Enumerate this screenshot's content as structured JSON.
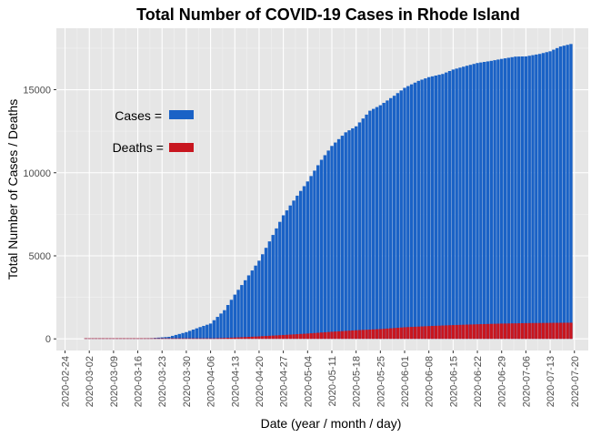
{
  "chart_data": {
    "type": "bar",
    "title": "Total Number of COVID-19 Cases in Rhode Island",
    "xlabel": "Date (year / month / day)",
    "ylabel": "Total Number of Cases / Deaths",
    "x_start": "2020-02-24",
    "x_end": "2020-07-20",
    "x_ticks": [
      "2020-02-24",
      "2020-03-02",
      "2020-03-09",
      "2020-03-16",
      "2020-03-23",
      "2020-03-30",
      "2020-04-06",
      "2020-04-13",
      "2020-04-20",
      "2020-04-27",
      "2020-05-04",
      "2020-05-11",
      "2020-05-18",
      "2020-05-25",
      "2020-06-01",
      "2020-06-08",
      "2020-06-15",
      "2020-06-22",
      "2020-06-29",
      "2020-07-06",
      "2020-07-13",
      "2020-07-20"
    ],
    "y_ticks": [
      0,
      5000,
      10000,
      15000
    ],
    "ylim": [
      -700,
      18700
    ],
    "grid": true,
    "legend_position": "top-left",
    "series": [
      {
        "name": "Cases",
        "color": "#1a62c6",
        "points": [
          [
            "2020-03-01",
            2
          ],
          [
            "2020-03-10",
            5
          ],
          [
            "2020-03-15",
            20
          ],
          [
            "2020-03-20",
            44
          ],
          [
            "2020-03-25",
            124
          ],
          [
            "2020-03-30",
            408
          ],
          [
            "2020-04-03",
            711
          ],
          [
            "2020-04-06",
            922
          ],
          [
            "2020-04-10",
            1727
          ],
          [
            "2020-04-13",
            2665
          ],
          [
            "2020-04-16",
            3529
          ],
          [
            "2020-04-20",
            4706
          ],
          [
            "2020-04-24",
            6256
          ],
          [
            "2020-04-27",
            7439
          ],
          [
            "2020-05-01",
            8621
          ],
          [
            "2020-05-04",
            9477
          ],
          [
            "2020-05-08",
            10779
          ],
          [
            "2020-05-11",
            11614
          ],
          [
            "2020-05-15",
            12434
          ],
          [
            "2020-05-18",
            12795
          ],
          [
            "2020-05-22",
            13735
          ],
          [
            "2020-05-25",
            14065
          ],
          [
            "2020-05-29",
            14635
          ],
          [
            "2020-06-01",
            15112
          ],
          [
            "2020-06-05",
            15530
          ],
          [
            "2020-06-08",
            15756
          ],
          [
            "2020-06-12",
            15947
          ],
          [
            "2020-06-15",
            16213
          ],
          [
            "2020-06-19",
            16442
          ],
          [
            "2020-06-22",
            16606
          ],
          [
            "2020-06-26",
            16737
          ],
          [
            "2020-06-29",
            16853
          ],
          [
            "2020-07-03",
            16991
          ],
          [
            "2020-07-06",
            17005
          ],
          [
            "2020-07-10",
            17154
          ],
          [
            "2020-07-13",
            17312
          ],
          [
            "2020-07-16",
            17600
          ],
          [
            "2020-07-19",
            17750
          ]
        ]
      },
      {
        "name": "Deaths",
        "color": "#c8161f",
        "points": [
          [
            "2020-03-01",
            0
          ],
          [
            "2020-03-25",
            0
          ],
          [
            "2020-03-30",
            8
          ],
          [
            "2020-04-06",
            25
          ],
          [
            "2020-04-13",
            80
          ],
          [
            "2020-04-20",
            150
          ],
          [
            "2020-04-27",
            233
          ],
          [
            "2020-05-04",
            320
          ],
          [
            "2020-05-11",
            430
          ],
          [
            "2020-05-18",
            520
          ],
          [
            "2020-05-25",
            590
          ],
          [
            "2020-06-01",
            700
          ],
          [
            "2020-06-08",
            770
          ],
          [
            "2020-06-15",
            830
          ],
          [
            "2020-06-22",
            880
          ],
          [
            "2020-06-29",
            920
          ],
          [
            "2020-07-06",
            950
          ],
          [
            "2020-07-13",
            965
          ],
          [
            "2020-07-19",
            975
          ]
        ]
      }
    ],
    "legend": [
      {
        "label": "Cases =",
        "color": "#1a62c6"
      },
      {
        "label": "Deaths =",
        "color": "#c8161f"
      }
    ]
  }
}
